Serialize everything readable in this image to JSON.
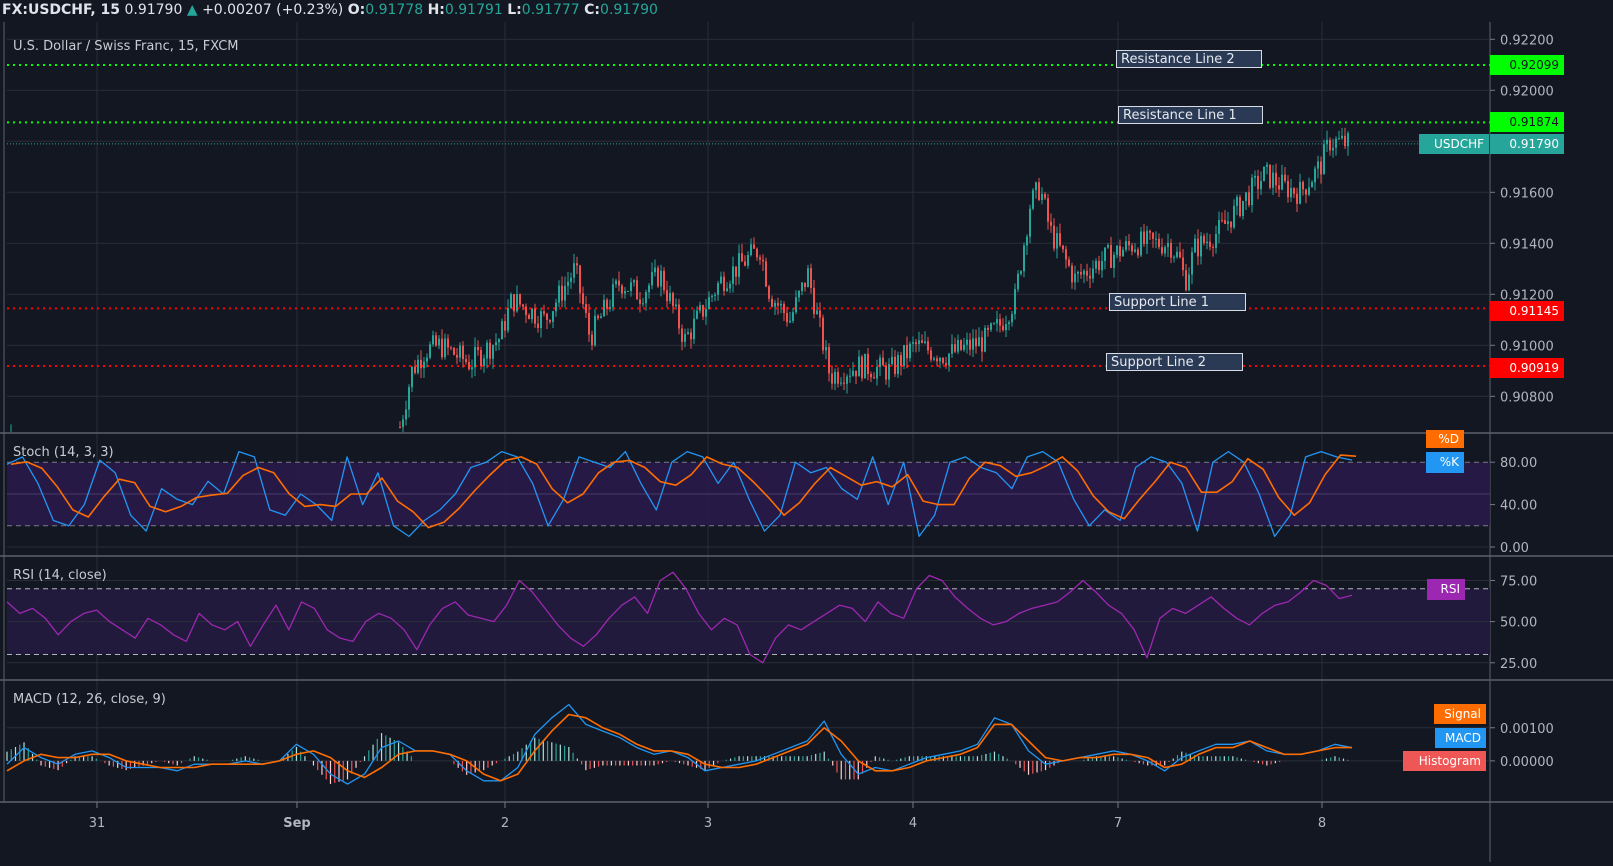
{
  "header": {
    "symbol": "FX:USDCHF, 15",
    "last": "0.91790",
    "change_arrow": "▲",
    "change": "+0.00207 (+0.23%)",
    "o_label": "O:",
    "o": "0.91778",
    "h_label": "H:",
    "h": "0.91791",
    "l_label": "L:",
    "l": "0.91777",
    "c_label": "C:",
    "c": "0.91790"
  },
  "main_pane": {
    "title": "U.S. Dollar / Swiss Franc, 15, FXCM",
    "price_ticks": [
      "0.92200",
      "0.92000",
      "0.91600",
      "0.91400",
      "0.91200",
      "0.91000",
      "0.90800"
    ],
    "tags": {
      "r2": "0.92099",
      "r1": "0.91874",
      "last_symbol": "USDCHF",
      "last": "0.91790",
      "s1": "0.91145",
      "s2": "0.90919"
    },
    "annotations": {
      "r2": "Resistance Line 2",
      "r1": "Resistance Line 1",
      "s1": "Support Line 1",
      "s2": "Support Line 2"
    }
  },
  "stoch_pane": {
    "title": "Stoch (14, 3, 3)",
    "ticks": [
      "80.00",
      "40.00",
      "0.00"
    ],
    "d_label": "%D",
    "k_label": "%K"
  },
  "rsi_pane": {
    "title": "RSI (14, close)",
    "ticks": [
      "75.00",
      "50.00",
      "25.00"
    ],
    "label": "RSI"
  },
  "macd_pane": {
    "title": "MACD (12, 26, close, 9)",
    "ticks": [
      "0.00100",
      "0.00000"
    ],
    "signal_label": "Signal",
    "macd_label": "MACD",
    "hist_label": "Histogram"
  },
  "time_axis": {
    "labels": [
      "31",
      "Sep",
      "2",
      "3",
      "4",
      "7",
      "8"
    ]
  },
  "colors": {
    "background": "#131722",
    "up": "#26a69a",
    "down": "#ef5350",
    "resistance": "#00ff00",
    "support": "#ff0000",
    "stoch_k": "#2196f3",
    "stoch_d": "#ff6d00",
    "rsi": "#9c27b0",
    "macd": "#2196f3",
    "signal": "#ff6d00",
    "histogram": "#ef5350"
  },
  "chart_data": [
    {
      "type": "candlestick",
      "title": "U.S. Dollar / Swiss Franc, 15, FXCM",
      "x_labels": [
        "31",
        "Sep",
        "2",
        "3",
        "4",
        "7",
        "8"
      ],
      "ylim": [
        0.9066,
        0.9226
      ],
      "y_ticks": [
        0.908,
        0.91,
        0.912,
        0.914,
        0.916,
        0.918,
        0.92,
        0.922
      ],
      "close_path_approx": [
        {
          "x": "Sep 1 late",
          "close": 0.907
        },
        {
          "x": "Sep 1 end",
          "close": 0.9095
        },
        {
          "x": "Sep 2 start",
          "close": 0.9115
        },
        {
          "x": "Sep 2 mid",
          "close": 0.9128
        },
        {
          "x": "Sep 2 end",
          "close": 0.9108
        },
        {
          "x": "Sep 3 mid",
          "close": 0.9138
        },
        {
          "x": "Sep 3 end",
          "close": 0.911
        },
        {
          "x": "Sep 4 start",
          "close": 0.909
        },
        {
          "x": "Sep 4 end",
          "close": 0.9108
        },
        {
          "x": "Sep 4 late",
          "close": 0.9162
        },
        {
          "x": "Sep 7 start",
          "close": 0.9133
        },
        {
          "x": "Sep 7 mid",
          "close": 0.9125
        },
        {
          "x": "Sep 7 end",
          "close": 0.916
        },
        {
          "x": "Sep 8 start",
          "close": 0.9162
        },
        {
          "x": "Sep 8 last",
          "close": 0.9179
        }
      ],
      "horizontal_lines": [
        {
          "name": "Resistance Line 2",
          "value": 0.92099,
          "color": "#00ff00"
        },
        {
          "name": "Resistance Line 1",
          "value": 0.91874,
          "color": "#00ff00"
        },
        {
          "name": "Support Line 1",
          "value": 0.91145,
          "color": "#ff0000"
        },
        {
          "name": "Support Line 2",
          "value": 0.90919,
          "color": "#ff0000"
        }
      ],
      "last_price": 0.9179
    },
    {
      "type": "line",
      "title": "Stoch (14, 3, 3)",
      "series": [
        {
          "name": "%K",
          "color": "#2196f3"
        },
        {
          "name": "%D",
          "color": "#ff6d00"
        }
      ],
      "ylim": [
        0,
        100
      ],
      "y_ticks": [
        0,
        40,
        80
      ],
      "bands": [
        20,
        80
      ],
      "k_values": [
        78,
        85,
        60,
        25,
        20,
        40,
        82,
        70,
        30,
        15,
        55,
        45,
        40,
        62,
        50,
        90,
        85,
        35,
        30,
        50,
        40,
        25,
        85,
        40,
        70,
        20,
        10,
        25,
        35,
        50,
        75,
        80,
        90,
        85,
        60,
        20,
        45,
        85,
        80,
        75,
        90,
        60,
        35,
        80,
        90,
        85,
        60,
        80,
        45,
        15,
        30,
        80,
        70,
        75,
        55,
        45,
        85,
        40,
        80,
        10,
        30,
        80,
        85,
        75,
        70,
        55,
        85,
        90,
        80,
        45,
        20,
        35,
        25,
        75,
        85,
        80,
        60,
        15,
        80,
        90,
        80,
        50,
        10,
        30,
        85,
        90,
        85,
        82
      ]
    },
    {
      "type": "line",
      "title": "RSI (14, close)",
      "series": [
        {
          "name": "RSI",
          "color": "#9c27b0"
        }
      ],
      "ylim": [
        20,
        85
      ],
      "y_ticks": [
        25,
        50,
        75
      ],
      "bands": [
        30,
        70
      ],
      "values": [
        62,
        55,
        58,
        52,
        42,
        50,
        55,
        57,
        50,
        45,
        40,
        52,
        48,
        42,
        38,
        55,
        48,
        45,
        50,
        35,
        48,
        60,
        45,
        62,
        58,
        45,
        40,
        38,
        50,
        55,
        52,
        45,
        33,
        48,
        58,
        62,
        54,
        52,
        50,
        60,
        75,
        68,
        58,
        48,
        40,
        35,
        42,
        52,
        60,
        65,
        55,
        75,
        80,
        70,
        55,
        45,
        52,
        48,
        30,
        25,
        40,
        48,
        45,
        50,
        55,
        60,
        58,
        50,
        62,
        55,
        52,
        70,
        78,
        75,
        65,
        58,
        52,
        48,
        50,
        55,
        58,
        60,
        62,
        68,
        75,
        68,
        60,
        55,
        45,
        28,
        52,
        58,
        55,
        60,
        65,
        58,
        52,
        48,
        55,
        60,
        62,
        68,
        75,
        72,
        64,
        66
      ]
    },
    {
      "type": "line+bar",
      "title": "MACD (12, 26, close, 9)",
      "series": [
        {
          "name": "MACD",
          "color": "#2196f3"
        },
        {
          "name": "Signal",
          "color": "#ff6d00"
        },
        {
          "name": "Histogram",
          "color": "#ef5350"
        }
      ],
      "ylim": [
        -0.001,
        0.0022
      ],
      "y_ticks": [
        0.0,
        0.001
      ],
      "macd_values": [
        -0.0001,
        0.0004,
        0.0001,
        -0.0001,
        0.0002,
        0.0003,
        0.0001,
        -0.0002,
        -0.0002,
        -0.0002,
        -0.0003,
        -0.0001,
        -0.0001,
        -0.0001,
        0.0,
        -0.0001,
        0.0,
        0.0005,
        0.0002,
        -0.0004,
        -0.0007,
        -0.0004,
        0.0004,
        0.0006,
        0.0003,
        0.0003,
        0.0002,
        -0.0003,
        -0.0006,
        -0.0006,
        -0.0002,
        0.0008,
        0.0013,
        0.0017,
        0.0011,
        0.0009,
        0.0007,
        0.0004,
        0.0002,
        0.0003,
        0.0001,
        -0.0003,
        -0.0002,
        -0.0001,
        0.0,
        0.0002,
        0.0004,
        0.0006,
        0.0012,
        0.0002,
        -0.0004,
        -0.0002,
        -0.0003,
        -0.0001,
        0.0001,
        0.0002,
        0.0003,
        0.0005,
        0.0013,
        0.0011,
        0.0003,
        -0.0001,
        0.0,
        0.0001,
        0.0002,
        0.0003,
        0.0002,
        0.0,
        -0.0003,
        0.0001,
        0.0003,
        0.0005,
        0.0005,
        0.0006,
        0.0003,
        0.0002,
        0.0002,
        0.0003,
        0.0005,
        0.0004
      ],
      "signal_values": [
        -0.0003,
        0.0,
        0.0002,
        0.0001,
        0.0001,
        0.0002,
        0.0002,
        0.0,
        -0.0001,
        -0.0002,
        -0.0002,
        -0.0002,
        -0.0001,
        -0.0001,
        -0.0001,
        -0.0001,
        0.0,
        0.0002,
        0.0003,
        0.0001,
        -0.0003,
        -0.0005,
        -0.0002,
        0.0002,
        0.0003,
        0.0003,
        0.0002,
        0.0,
        -0.0004,
        -0.0006,
        -0.0004,
        0.0003,
        0.0009,
        0.0014,
        0.0013,
        0.001,
        0.0008,
        0.0005,
        0.0003,
        0.0003,
        0.0002,
        -0.0001,
        -0.0002,
        -0.0002,
        -0.0001,
        0.0001,
        0.0003,
        0.0005,
        0.001,
        0.0006,
        0.0,
        -0.0003,
        -0.0003,
        -0.0002,
        0.0,
        0.0001,
        0.0002,
        0.0004,
        0.0011,
        0.0011,
        0.0006,
        0.0001,
        0.0,
        0.0001,
        0.0001,
        0.0002,
        0.0002,
        0.0001,
        -0.0002,
        -0.0001,
        0.0002,
        0.0004,
        0.0004,
        0.0006,
        0.0004,
        0.0002,
        0.0002,
        0.0003,
        0.0004,
        0.0004
      ]
    }
  ]
}
